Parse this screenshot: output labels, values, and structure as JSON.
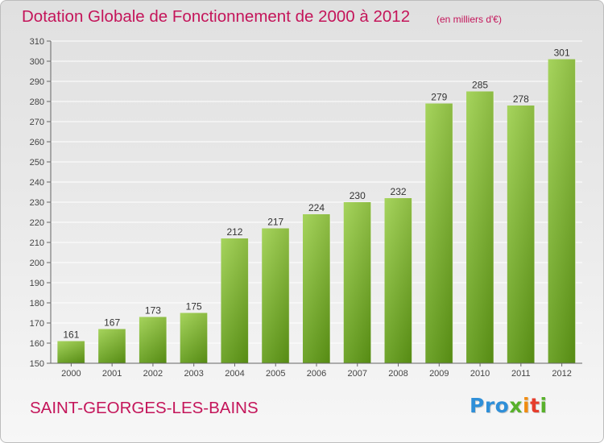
{
  "header": {
    "title": "Dotation Globale de Fonctionnement de 2000 à 2012",
    "unit_note": "(en milliers d'€)"
  },
  "footer": {
    "town": "SAINT-GEORGES-LES-BAINS",
    "logo_text": "Proxiti",
    "logo_colors": [
      "#2f8fd8",
      "#58b12b",
      "#f08c12",
      "#e63d2c"
    ]
  },
  "chart_data": {
    "type": "bar",
    "title": "Dotation Globale de Fonctionnement de 2000 à 2012",
    "subtitle": "(en milliers d'€)",
    "xlabel": "",
    "ylabel": "",
    "categories": [
      "2000",
      "2001",
      "2002",
      "2003",
      "2004",
      "2005",
      "2006",
      "2007",
      "2008",
      "2009",
      "2010",
      "2011",
      "2012"
    ],
    "values": [
      161,
      167,
      173,
      175,
      212,
      217,
      224,
      230,
      232,
      279,
      285,
      278,
      301
    ],
    "ylim": [
      150,
      310
    ],
    "yticks": [
      150,
      160,
      170,
      180,
      190,
      200,
      210,
      220,
      230,
      240,
      250,
      260,
      270,
      280,
      290,
      300,
      310
    ],
    "grid": "horizontal",
    "legend": "none",
    "bar_color_top": "#9ccf4b",
    "bar_color_bottom": "#5f9a15"
  }
}
